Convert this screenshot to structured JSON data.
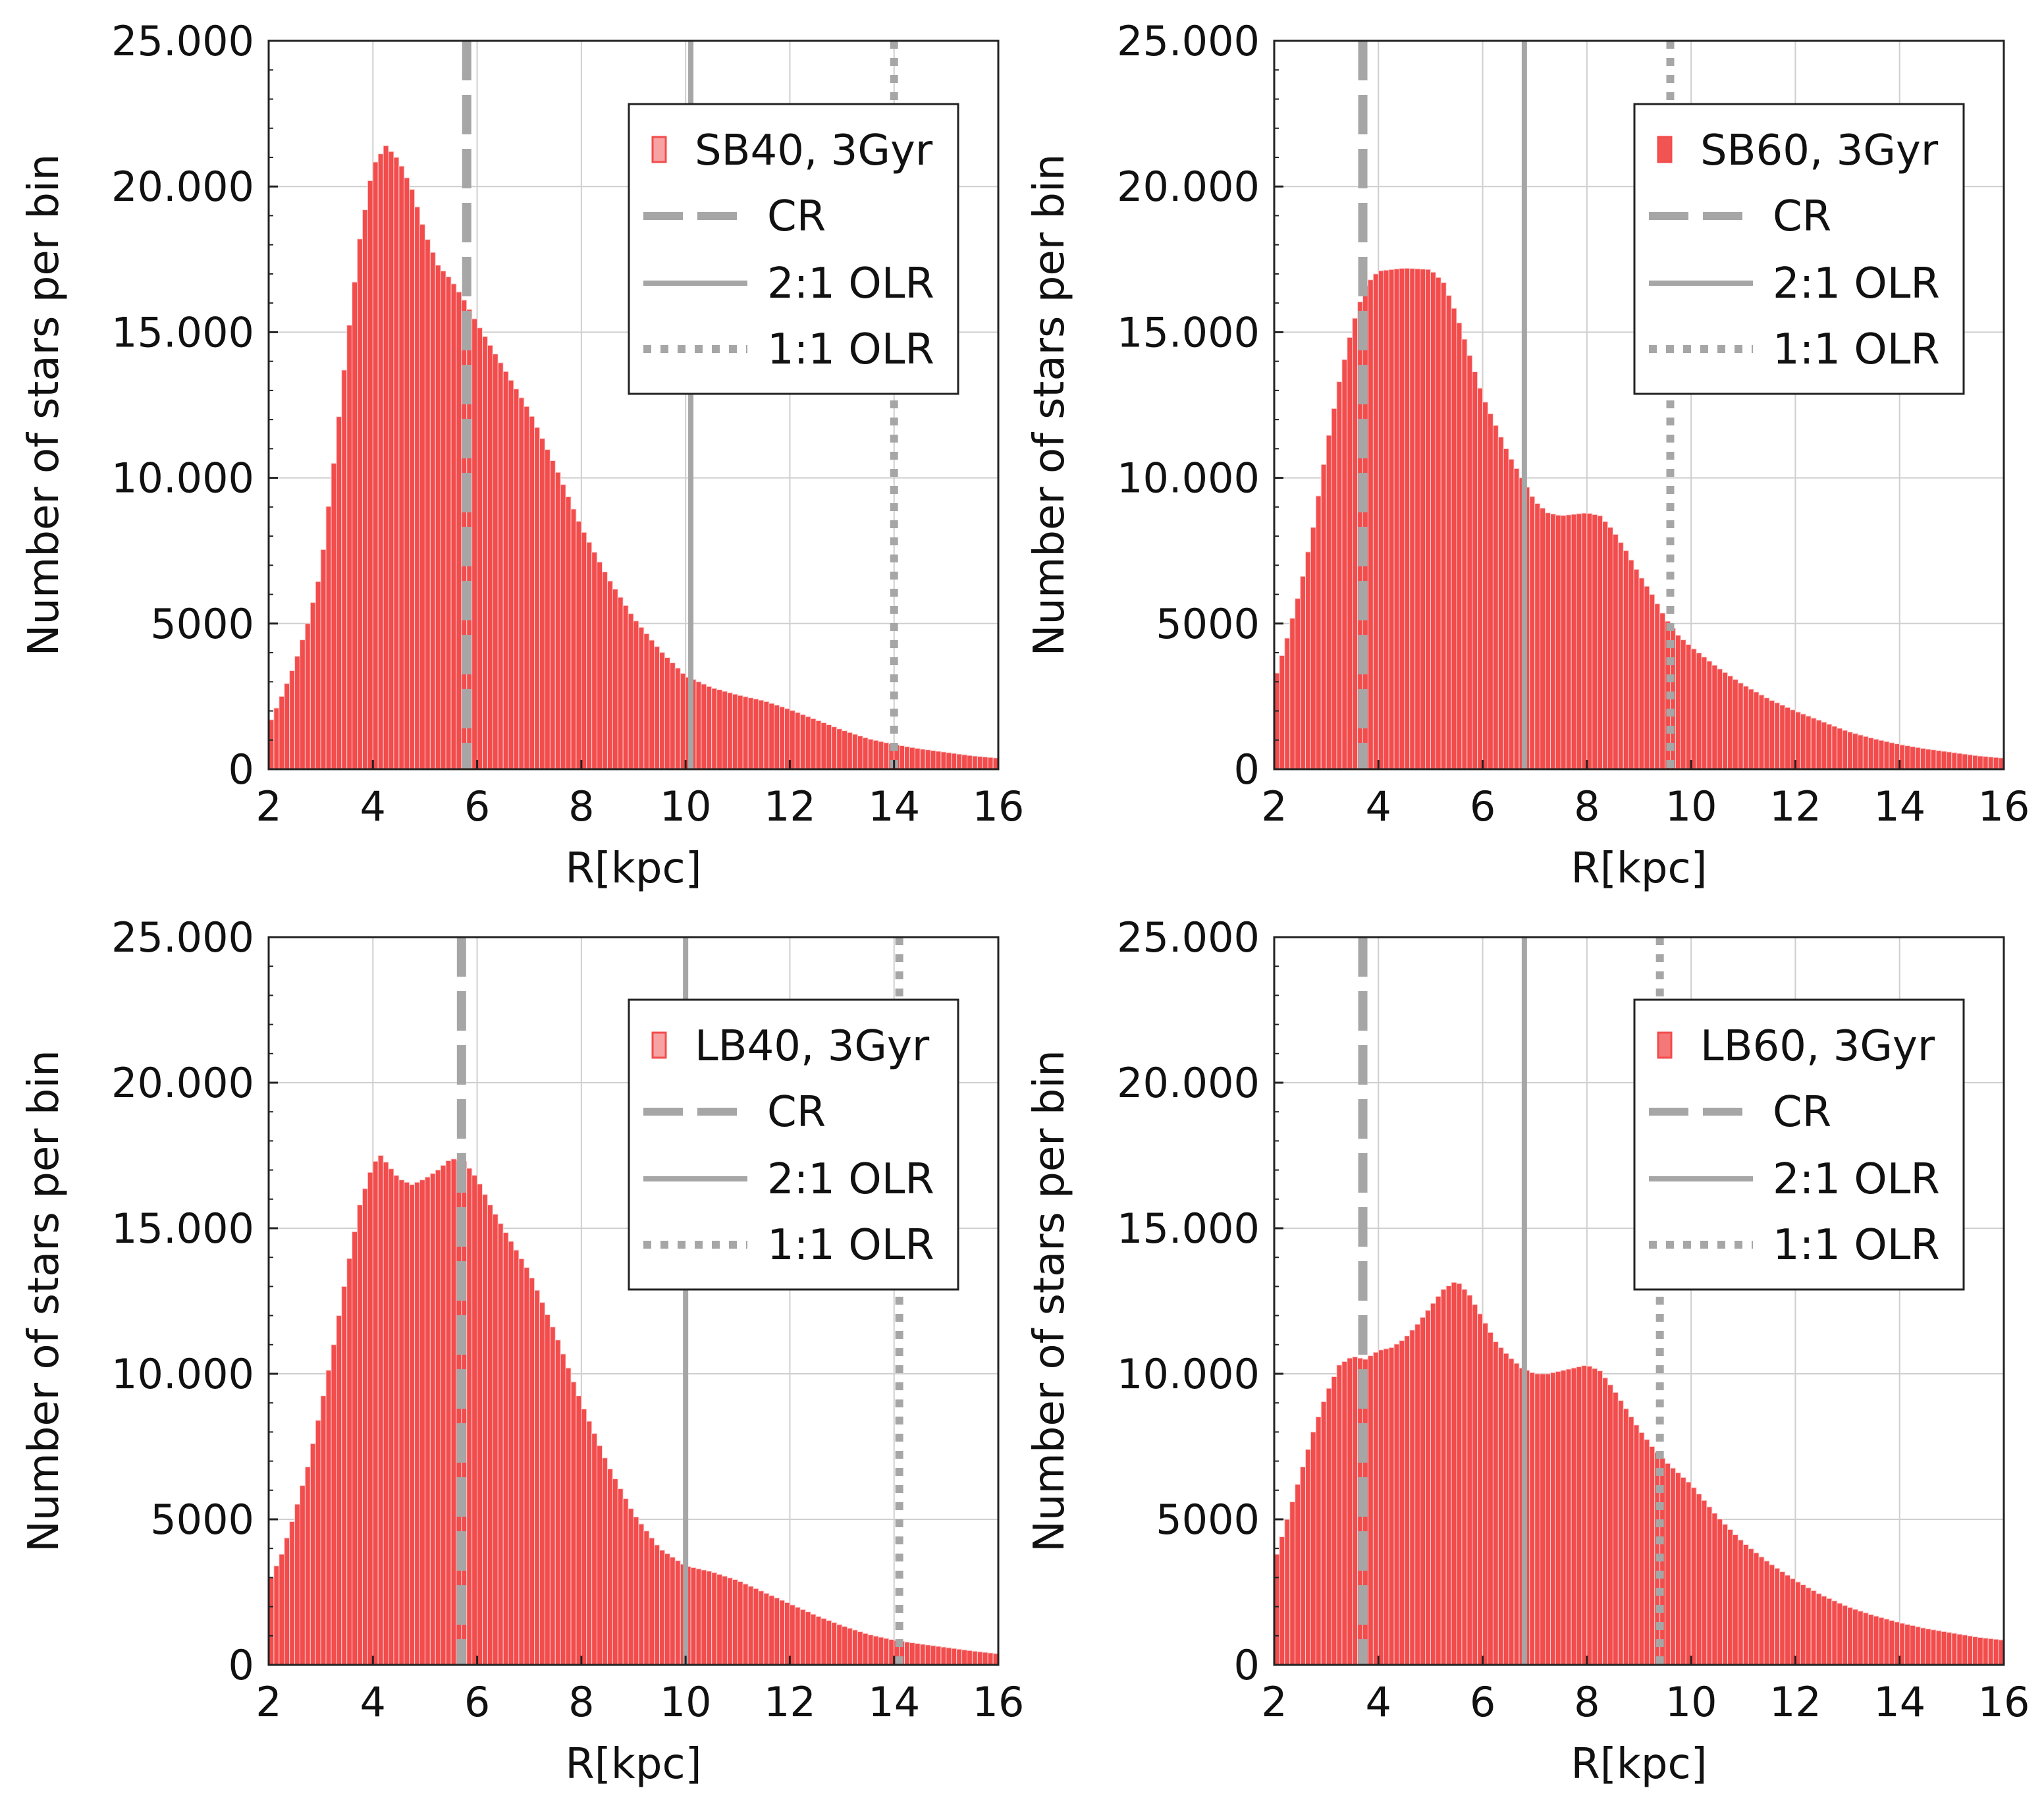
{
  "chart_data": [
    {
      "type": "bar",
      "title": "",
      "xlabel": "R[kpc]",
      "ylabel": "Number of stars per bin",
      "xlim": [
        2,
        16
      ],
      "ylim": [
        0,
        25000
      ],
      "xticks": [
        2,
        4,
        6,
        8,
        10,
        12,
        14,
        16
      ],
      "xtick_labels": [
        "2",
        "4",
        "6",
        "8",
        "10",
        "12",
        "14",
        "16"
      ],
      "yticks": [
        0,
        5000,
        10000,
        15000,
        20000,
        25000
      ],
      "ytick_labels": [
        "0",
        "5000",
        "10.000",
        "15.000",
        "20.000",
        "25.000"
      ],
      "grid": true,
      "legend_position": "top-right",
      "series_label": "SB40, 3Gyr",
      "bar_color": "#f24c4c",
      "swatch_color": "#f7a3a3",
      "bins": {
        "start": 2.0,
        "width": 0.1,
        "count": 140
      },
      "profile": [
        [
          2.0,
          1500
        ],
        [
          2.25,
          2500
        ],
        [
          2.5,
          3600
        ],
        [
          2.75,
          5000
        ],
        [
          3.0,
          6800
        ],
        [
          3.25,
          10500
        ],
        [
          3.5,
          14500
        ],
        [
          3.75,
          18200
        ],
        [
          4.0,
          20700
        ],
        [
          4.25,
          21400
        ],
        [
          4.5,
          20900
        ],
        [
          4.75,
          19900
        ],
        [
          5.0,
          18400
        ],
        [
          5.25,
          17300
        ],
        [
          5.5,
          16800
        ],
        [
          5.75,
          16100
        ],
        [
          6.0,
          15300
        ],
        [
          6.5,
          13800
        ],
        [
          7.0,
          12300
        ],
        [
          7.5,
          10400
        ],
        [
          8.0,
          8300
        ],
        [
          8.5,
          6600
        ],
        [
          9.0,
          5200
        ],
        [
          9.5,
          4100
        ],
        [
          10.0,
          3200
        ],
        [
          10.5,
          2800
        ],
        [
          11.0,
          2550
        ],
        [
          11.5,
          2350
        ],
        [
          12.0,
          2050
        ],
        [
          12.5,
          1700
        ],
        [
          13.0,
          1350
        ],
        [
          13.5,
          1050
        ],
        [
          14.0,
          850
        ],
        [
          14.5,
          700
        ],
        [
          15.0,
          580
        ],
        [
          15.5,
          460
        ],
        [
          16.0,
          380
        ]
      ],
      "reference_lines": [
        {
          "label": "CR",
          "style": "dashed",
          "x": 5.8
        },
        {
          "label": "2:1 OLR",
          "style": "solid",
          "x": 10.1
        },
        {
          "label": "1:1 OLR",
          "style": "dotted",
          "x": 14.0
        }
      ]
    },
    {
      "type": "bar",
      "title": "",
      "xlabel": "R[kpc]",
      "ylabel": "Number of stars per bin",
      "xlim": [
        2,
        16
      ],
      "ylim": [
        0,
        25000
      ],
      "xticks": [
        2,
        4,
        6,
        8,
        10,
        12,
        14,
        16
      ],
      "xtick_labels": [
        "2",
        "4",
        "6",
        "8",
        "10",
        "12",
        "14",
        "16"
      ],
      "yticks": [
        0,
        5000,
        10000,
        15000,
        20000,
        25000
      ],
      "ytick_labels": [
        "0",
        "5000",
        "10.000",
        "15.000",
        "20.000",
        "25.000"
      ],
      "grid": true,
      "legend_position": "top-right",
      "series_label": "SB60, 3Gyr",
      "bar_color": "#f24c4c",
      "swatch_color": "#f25454",
      "bins": {
        "start": 2.0,
        "width": 0.1,
        "count": 140
      },
      "profile": [
        [
          2.0,
          3000
        ],
        [
          2.25,
          4500
        ],
        [
          2.5,
          6200
        ],
        [
          2.75,
          8300
        ],
        [
          3.0,
          11000
        ],
        [
          3.25,
          13300
        ],
        [
          3.5,
          15200
        ],
        [
          3.75,
          16600
        ],
        [
          4.0,
          17100
        ],
        [
          4.5,
          17200
        ],
        [
          5.0,
          17150
        ],
        [
          5.25,
          16700
        ],
        [
          5.5,
          15600
        ],
        [
          5.75,
          14200
        ],
        [
          6.0,
          12800
        ],
        [
          6.25,
          11800
        ],
        [
          6.5,
          10800
        ],
        [
          6.75,
          10000
        ],
        [
          7.0,
          9200
        ],
        [
          7.25,
          8800
        ],
        [
          7.5,
          8700
        ],
        [
          8.0,
          8800
        ],
        [
          8.25,
          8700
        ],
        [
          8.5,
          8200
        ],
        [
          8.75,
          7500
        ],
        [
          9.0,
          6700
        ],
        [
          9.25,
          6000
        ],
        [
          9.5,
          5200
        ],
        [
          9.75,
          4600
        ],
        [
          10.0,
          4200
        ],
        [
          10.5,
          3500
        ],
        [
          11.0,
          2900
        ],
        [
          11.5,
          2400
        ],
        [
          12.0,
          2000
        ],
        [
          12.5,
          1650
        ],
        [
          13.0,
          1300
        ],
        [
          13.5,
          1050
        ],
        [
          14.0,
          850
        ],
        [
          14.5,
          700
        ],
        [
          15.0,
          580
        ],
        [
          15.5,
          460
        ],
        [
          16.0,
          380
        ]
      ],
      "reference_lines": [
        {
          "label": "CR",
          "style": "dashed",
          "x": 3.7
        },
        {
          "label": "2:1 OLR",
          "style": "solid",
          "x": 6.8
        },
        {
          "label": "1:1 OLR",
          "style": "dotted",
          "x": 9.6
        }
      ]
    },
    {
      "type": "bar",
      "title": "",
      "xlabel": "R[kpc]",
      "ylabel": "Number of stars per bin",
      "xlim": [
        2,
        16
      ],
      "ylim": [
        0,
        25000
      ],
      "xticks": [
        2,
        4,
        6,
        8,
        10,
        12,
        14,
        16
      ],
      "xtick_labels": [
        "2",
        "4",
        "6",
        "8",
        "10",
        "12",
        "14",
        "16"
      ],
      "yticks": [
        0,
        5000,
        10000,
        15000,
        20000,
        25000
      ],
      "ytick_labels": [
        "0",
        "5000",
        "10.000",
        "15.000",
        "20.000",
        "25.000"
      ],
      "grid": true,
      "legend_position": "top-right",
      "series_label": "LB40, 3Gyr",
      "bar_color": "#f24c4c",
      "swatch_color": "#f7a3a3",
      "bins": {
        "start": 2.0,
        "width": 0.1,
        "count": 140
      },
      "profile": [
        [
          2.0,
          2800
        ],
        [
          2.25,
          3800
        ],
        [
          2.5,
          5200
        ],
        [
          2.75,
          6800
        ],
        [
          3.0,
          8800
        ],
        [
          3.25,
          11000
        ],
        [
          3.5,
          13500
        ],
        [
          3.75,
          15800
        ],
        [
          4.0,
          17200
        ],
        [
          4.15,
          17500
        ],
        [
          4.5,
          16700
        ],
        [
          4.75,
          16500
        ],
        [
          5.0,
          16700
        ],
        [
          5.25,
          17000
        ],
        [
          5.5,
          17400
        ],
        [
          5.75,
          17300
        ],
        [
          6.0,
          16700
        ],
        [
          6.25,
          15800
        ],
        [
          6.5,
          15000
        ],
        [
          7.0,
          13500
        ],
        [
          7.5,
          11400
        ],
        [
          8.0,
          9000
        ],
        [
          8.5,
          6900
        ],
        [
          9.0,
          5200
        ],
        [
          9.5,
          4000
        ],
        [
          10.0,
          3400
        ],
        [
          10.5,
          3200
        ],
        [
          11.0,
          2900
        ],
        [
          11.5,
          2500
        ],
        [
          12.0,
          2100
        ],
        [
          12.5,
          1700
        ],
        [
          13.0,
          1350
        ],
        [
          13.5,
          1050
        ],
        [
          14.0,
          850
        ],
        [
          14.5,
          720
        ],
        [
          15.0,
          600
        ],
        [
          15.5,
          480
        ],
        [
          16.0,
          380
        ]
      ],
      "reference_lines": [
        {
          "label": "CR",
          "style": "dashed",
          "x": 5.7
        },
        {
          "label": "2:1 OLR",
          "style": "solid",
          "x": 10.0
        },
        {
          "label": "1:1 OLR",
          "style": "dotted",
          "x": 14.1
        }
      ]
    },
    {
      "type": "bar",
      "title": "",
      "xlabel": "R[kpc]",
      "ylabel": "Number of stars per bin",
      "xlim": [
        2,
        16
      ],
      "ylim": [
        0,
        25000
      ],
      "xticks": [
        2,
        4,
        6,
        8,
        10,
        12,
        14,
        16
      ],
      "xtick_labels": [
        "2",
        "4",
        "6",
        "8",
        "10",
        "12",
        "14",
        "16"
      ],
      "yticks": [
        0,
        5000,
        10000,
        15000,
        20000,
        25000
      ],
      "ytick_labels": [
        "0",
        "5000",
        "10.000",
        "15.000",
        "20.000",
        "25.000"
      ],
      "grid": true,
      "legend_position": "top-right",
      "series_label": "LB60, 3Gyr",
      "bar_color": "#f24c4c",
      "swatch_color": "#f47878",
      "bins": {
        "start": 2.0,
        "width": 0.1,
        "count": 140
      },
      "profile": [
        [
          2.0,
          3500
        ],
        [
          2.25,
          5000
        ],
        [
          2.5,
          6500
        ],
        [
          2.75,
          8000
        ],
        [
          3.0,
          9300
        ],
        [
          3.25,
          10300
        ],
        [
          3.5,
          10600
        ],
        [
          3.75,
          10500
        ],
        [
          4.0,
          10800
        ],
        [
          4.25,
          10900
        ],
        [
          4.5,
          11200
        ],
        [
          4.75,
          11700
        ],
        [
          5.0,
          12300
        ],
        [
          5.25,
          12900
        ],
        [
          5.5,
          13200
        ],
        [
          5.75,
          12700
        ],
        [
          6.0,
          11900
        ],
        [
          6.25,
          11100
        ],
        [
          6.5,
          10600
        ],
        [
          6.75,
          10200
        ],
        [
          7.0,
          10000
        ],
        [
          7.25,
          10000
        ],
        [
          7.5,
          10100
        ],
        [
          7.75,
          10200
        ],
        [
          8.0,
          10300
        ],
        [
          8.25,
          10100
        ],
        [
          8.5,
          9500
        ],
        [
          8.75,
          8800
        ],
        [
          9.0,
          8100
        ],
        [
          9.25,
          7500
        ],
        [
          9.5,
          7000
        ],
        [
          9.75,
          6600
        ],
        [
          10.0,
          6200
        ],
        [
          10.5,
          5100
        ],
        [
          11.0,
          4200
        ],
        [
          11.5,
          3500
        ],
        [
          12.0,
          2900
        ],
        [
          12.5,
          2400
        ],
        [
          13.0,
          2000
        ],
        [
          13.5,
          1700
        ],
        [
          14.0,
          1450
        ],
        [
          14.5,
          1250
        ],
        [
          15.0,
          1100
        ],
        [
          15.5,
          950
        ],
        [
          16.0,
          850
        ]
      ],
      "reference_lines": [
        {
          "label": "CR",
          "style": "dashed",
          "x": 3.7
        },
        {
          "label": "2:1 OLR",
          "style": "solid",
          "x": 6.8
        },
        {
          "label": "1:1 OLR",
          "style": "dotted",
          "x": 9.4
        }
      ]
    }
  ]
}
